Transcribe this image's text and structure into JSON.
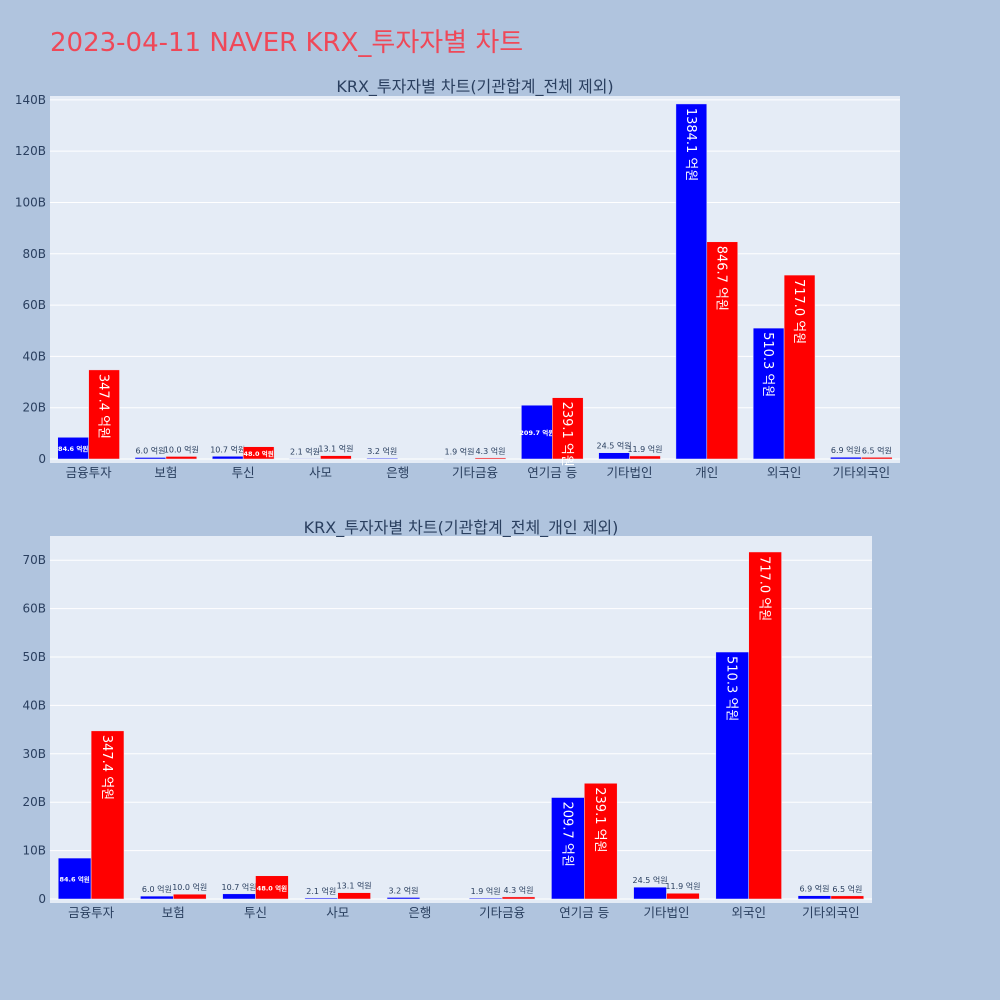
{
  "page": {
    "title": "2023-04-11 NAVER KRX_투자자별 차트"
  },
  "colors": {
    "background": "#b0c4de",
    "plot_bg": "#e5ecf6",
    "grid": "#ffffff",
    "series_a": "#0000ff",
    "series_b": "#ff0000",
    "title": "#ef4858",
    "text": "#2a3f5f"
  },
  "chart_data": [
    {
      "type": "bar",
      "title": "KRX_투자자별 차트(기관합계_전체 제외)",
      "categories": [
        "금융투자",
        "보험",
        "투신",
        "사모",
        "은행",
        "기타금융",
        "연기금 등",
        "기타법인",
        "개인",
        "외국인",
        "기타외국인"
      ],
      "series": [
        {
          "values": [
            8.46,
            0.6,
            1.07,
            0.21,
            0.32,
            0.19,
            20.97,
            2.45,
            138.41,
            51.03,
            0.69
          ],
          "labels": [
            "84.6 억원",
            "6.0 억원",
            "10.7 억원",
            "2.1 억원",
            "3.2 억원",
            "1.9 억원",
            "209.7 억원",
            "24.5 억원",
            "1384.1 억원",
            "510.3 억원",
            "6.9 억원"
          ]
        },
        {
          "values": [
            34.74,
            1.0,
            4.8,
            1.31,
            0.0,
            0.43,
            23.91,
            1.19,
            84.67,
            71.7,
            0.65
          ],
          "labels": [
            "347.4 억원",
            "10.0 억원",
            "48.0 억원",
            "13.1 억원",
            "",
            "4.3 억원",
            "239.1 억원",
            "11.9 억원",
            "846.7 억원",
            "717.0 억원",
            "6.5 억원"
          ]
        }
      ],
      "yticks": [
        "0",
        "20B",
        "40B",
        "60B",
        "80B",
        "100B",
        "120B",
        "140B"
      ],
      "ytick_values": [
        0,
        20,
        40,
        60,
        80,
        100,
        120,
        140
      ],
      "ylim": [
        0,
        141.5
      ],
      "grid": true
    },
    {
      "type": "bar",
      "title": "KRX_투자자별 차트(기관합계_전체_개인 제외)",
      "categories": [
        "금융투자",
        "보험",
        "투신",
        "사모",
        "은행",
        "기타금융",
        "연기금 등",
        "기타법인",
        "외국인",
        "기타외국인"
      ],
      "series": [
        {
          "values": [
            8.46,
            0.6,
            1.07,
            0.21,
            0.32,
            0.19,
            20.97,
            2.45,
            51.03,
            0.69
          ],
          "labels": [
            "84.6 억원",
            "6.0 억원",
            "10.7 억원",
            "2.1 억원",
            "3.2 억원",
            "1.9 억원",
            "209.7 억원",
            "24.5 억원",
            "510.3 억원",
            "6.9 억원"
          ]
        },
        {
          "values": [
            34.74,
            1.0,
            4.8,
            1.31,
            0.0,
            0.43,
            23.91,
            1.19,
            71.7,
            0.65
          ],
          "labels": [
            "347.4 억원",
            "10.0 억원",
            "48.0 억원",
            "13.1 억원",
            "",
            "4.3 억원",
            "239.1 억원",
            "11.9 억원",
            "717.0 억원",
            "6.5 억원"
          ]
        }
      ],
      "yticks": [
        "0",
        "10B",
        "20B",
        "30B",
        "40B",
        "50B",
        "60B",
        "70B"
      ],
      "ytick_values": [
        0,
        10,
        20,
        30,
        40,
        50,
        60,
        70
      ],
      "ylim": [
        0,
        75
      ],
      "grid": true
    }
  ]
}
